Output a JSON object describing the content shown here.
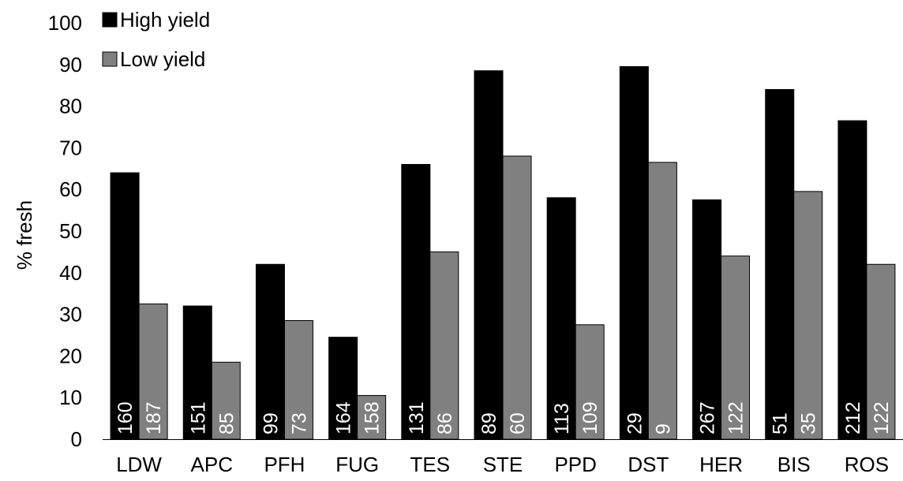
{
  "chart_data": {
    "type": "bar",
    "title": "",
    "xlabel": "",
    "ylabel": "% fresh",
    "ylim": [
      0,
      100
    ],
    "yticks": [
      0,
      10,
      20,
      30,
      40,
      50,
      60,
      70,
      80,
      90,
      100
    ],
    "categories": [
      "LDW",
      "APC",
      "PFH",
      "FUG",
      "TES",
      "STE",
      "PPD",
      "DST",
      "HER",
      "BIS",
      "ROS"
    ],
    "series": [
      {
        "name": "High yield",
        "color": "#000000",
        "label_color": "#ffffff",
        "values": [
          64,
          32,
          42,
          24.5,
          66,
          88.5,
          58,
          89.5,
          57.5,
          84,
          76.5
        ],
        "labels": [
          "160",
          "151",
          "99",
          "164",
          "131",
          "89",
          "113",
          "29",
          "267",
          "51",
          "212"
        ]
      },
      {
        "name": "Low yield",
        "color": "#808080",
        "label_color": "#ffffff",
        "values": [
          32.5,
          18.5,
          28.5,
          10.5,
          45,
          68,
          27.5,
          66.5,
          44,
          59.5,
          42
        ],
        "labels": [
          "187",
          "85",
          "73",
          "158",
          "86",
          "60",
          "109",
          "9",
          "122",
          "35",
          "122"
        ]
      }
    ],
    "legend_position": "top-left",
    "grid": false
  }
}
